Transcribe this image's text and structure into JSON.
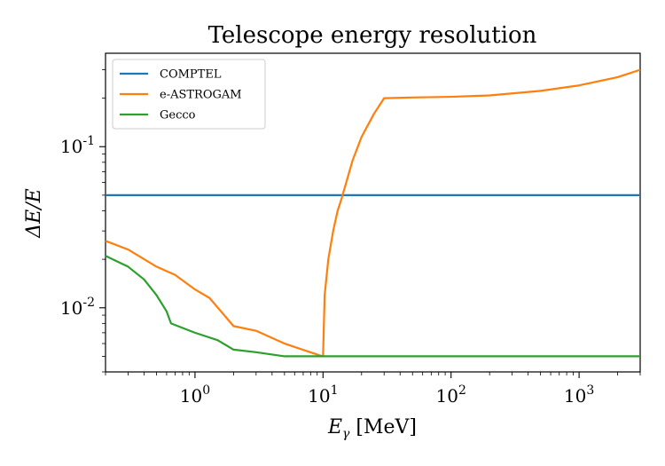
{
  "chart_data": {
    "type": "line",
    "title": "Telescope energy resolution",
    "xlabel": "E_γ [MeV]",
    "ylabel": "ΔE/E",
    "xscale": "log",
    "yscale": "log",
    "xlim": [
      0.2,
      3000
    ],
    "ylim": [
      0.004,
      0.38
    ],
    "grid": false,
    "legend_position": "top-left",
    "x_ticks": [
      {
        "base": "10",
        "exp": "0",
        "value": 1
      },
      {
        "base": "10",
        "exp": "1",
        "value": 10
      },
      {
        "base": "10",
        "exp": "2",
        "value": 100
      },
      {
        "base": "10",
        "exp": "3",
        "value": 1000
      }
    ],
    "y_ticks": [
      {
        "base": "10",
        "exp": "-2",
        "value": 0.01
      },
      {
        "base": "10",
        "exp": "-1",
        "value": 0.1
      }
    ],
    "series": [
      {
        "name": "COMPTEL",
        "color": "#1f77b4",
        "x": [
          0.2,
          3000
        ],
        "y": [
          0.05,
          0.05
        ]
      },
      {
        "name": "e-ASTROGAM",
        "color": "#ff7f0e",
        "x": [
          0.2,
          0.3,
          0.5,
          0.7,
          1.0,
          1.3,
          2.0,
          3.0,
          5.0,
          9.9,
          10.0,
          10.3,
          11,
          12,
          13,
          14,
          15,
          17,
          20,
          25,
          30,
          50,
          100,
          200,
          500,
          1000,
          2000,
          3000
        ],
        "y": [
          0.026,
          0.023,
          0.018,
          0.016,
          0.013,
          0.0115,
          0.0077,
          0.0072,
          0.006,
          0.005,
          0.005,
          0.012,
          0.02,
          0.03,
          0.04,
          0.048,
          0.058,
          0.082,
          0.115,
          0.16,
          0.2,
          0.202,
          0.204,
          0.208,
          0.222,
          0.24,
          0.27,
          0.3
        ]
      },
      {
        "name": "Gecco",
        "color": "#2ca02c",
        "x": [
          0.2,
          0.3,
          0.4,
          0.5,
          0.6,
          0.65,
          1.0,
          1.5,
          2.0,
          3.0,
          5.0,
          10,
          100,
          3000
        ],
        "y": [
          0.021,
          0.018,
          0.015,
          0.012,
          0.0095,
          0.008,
          0.007,
          0.0063,
          0.0055,
          0.0053,
          0.005,
          0.005,
          0.005,
          0.005
        ]
      }
    ]
  }
}
